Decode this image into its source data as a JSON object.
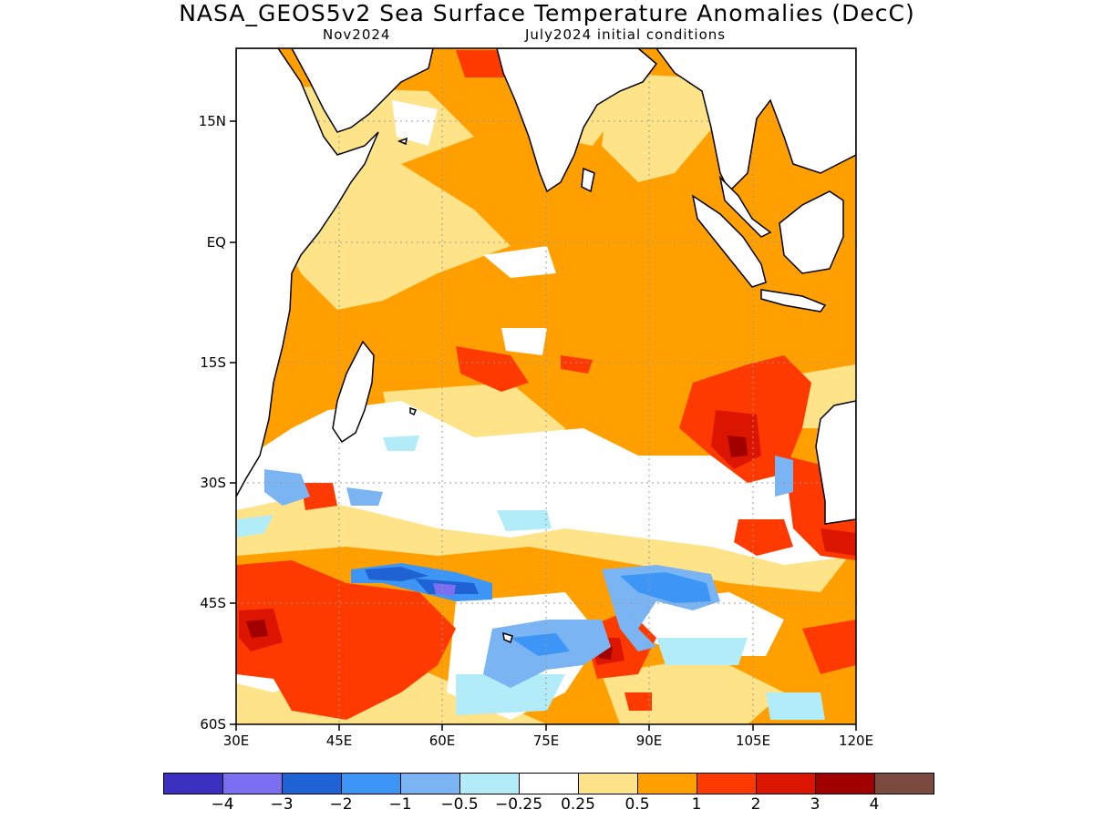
{
  "title": "NASA_GEOS5v2 Sea Surface Temperature Anomalies (DecC)",
  "subtitle_left": "Nov2024",
  "subtitle_right": "July2024 initial conditions",
  "y_ticks": [
    "15N",
    "EQ",
    "15S",
    "30S",
    "45S",
    "60S"
  ],
  "x_ticks": [
    "30E",
    "45E",
    "60E",
    "75E",
    "90E",
    "105E",
    "120E"
  ],
  "colorbar": {
    "colors": [
      "#3b2fbf",
      "#7b6ef0",
      "#1f62d4",
      "#3d96f5",
      "#7ab4f2",
      "#b2ecf8",
      "#ffffff",
      "#ffe389",
      "#ff9f00",
      "#ff3a00",
      "#db1500",
      "#a00000",
      "#7a4a3e"
    ],
    "labels": [
      "−4",
      "−3",
      "−2",
      "−1",
      "−0.5",
      "−0.25",
      "0.25",
      "0.5",
      "1",
      "2",
      "3",
      "4"
    ]
  },
  "map_colors": {
    "ocean_base": "#ff9f00",
    "weak_warm": "#ffe389",
    "neutral": "#ffffff",
    "warm": "#ff3a00",
    "strong_warm": "#db1500",
    "very_strong_warm": "#a00000",
    "weak_cool": "#b2ecf8",
    "cool": "#7ab4f2",
    "moderate_cool": "#3d96f5",
    "strong_cool": "#1f62d4",
    "very_strong_cool": "#7b6ef0",
    "coastline": "#000000",
    "gridline": "#9a9a9a"
  }
}
